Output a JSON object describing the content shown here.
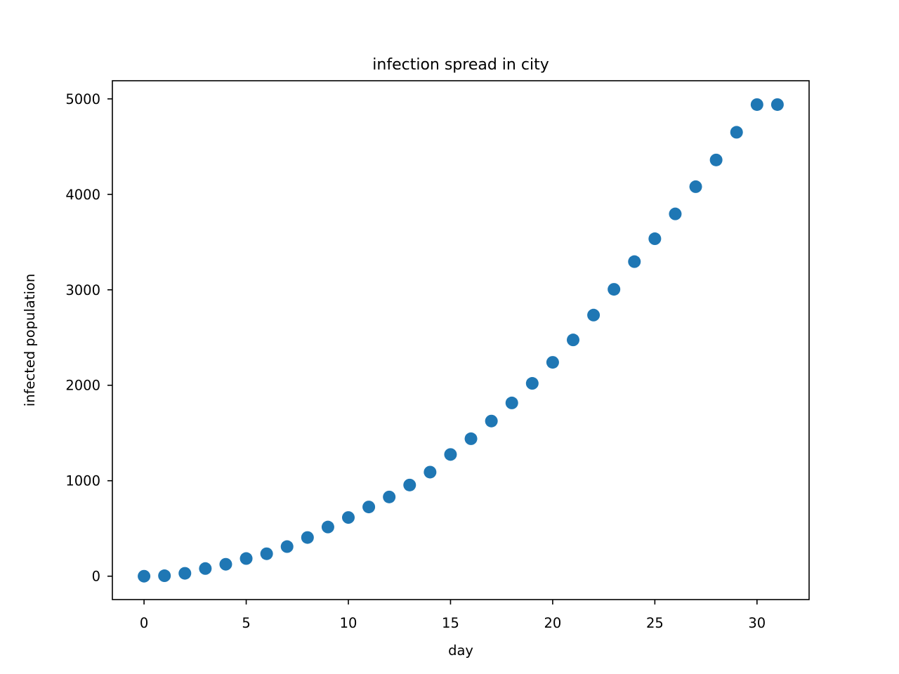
{
  "chart_data": {
    "type": "scatter",
    "title": "infection spread in city",
    "xlabel": "day",
    "ylabel": "infected population",
    "xlim": [
      -1.55,
      32.55
    ],
    "ylim": [
      -245,
      5190
    ],
    "xticks": [
      0,
      5,
      10,
      15,
      20,
      25,
      30
    ],
    "xtick_labels": [
      "0",
      "5",
      "10",
      "15",
      "20",
      "25",
      "30"
    ],
    "yticks": [
      0,
      1000,
      2000,
      3000,
      4000,
      5000
    ],
    "ytick_labels": [
      "0",
      "1000",
      "2000",
      "3000",
      "4000",
      "5000"
    ],
    "grid": false,
    "legend": "none",
    "marker_color": "#1f77b4",
    "series": [
      {
        "x": [
          0,
          1,
          2,
          3,
          4,
          5,
          6,
          7,
          8,
          9,
          10,
          11,
          12,
          13,
          14,
          15,
          16,
          17,
          18,
          19,
          20,
          21,
          22,
          23,
          24,
          25,
          26,
          27,
          28,
          29,
          30,
          31
        ],
        "y": [
          0,
          5,
          30,
          80,
          125,
          185,
          235,
          310,
          405,
          515,
          615,
          725,
          830,
          955,
          1090,
          1275,
          1440,
          1625,
          1815,
          2020,
          2240,
          2475,
          2735,
          3005,
          3295,
          3535,
          3795,
          4080,
          4360,
          4650,
          4940,
          4940
        ]
      }
    ]
  }
}
